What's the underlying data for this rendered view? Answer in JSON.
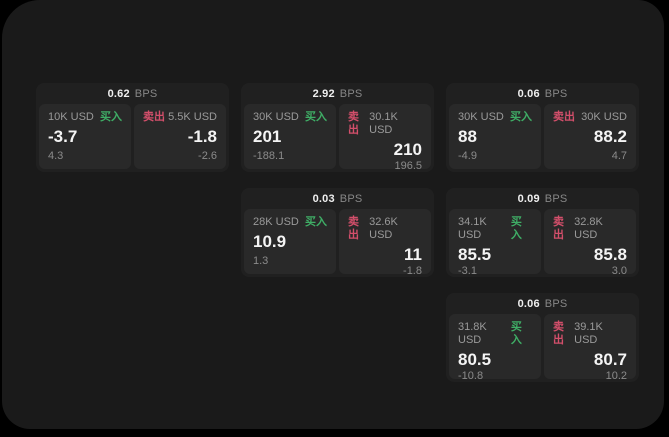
{
  "colors": {
    "background": "#000000",
    "panel": "#1a1a1a",
    "card": "#202020",
    "pane": "#292929",
    "buy": "#3fae66",
    "sell": "#d44f6b",
    "price_text": "#f4f4f4",
    "muted_text": "#9a9a9a"
  },
  "labels": {
    "bps": "BPS",
    "buy": "买入",
    "sell": "卖出"
  },
  "cards": [
    {
      "bps": "0.62",
      "buy": {
        "amount": "10K USD",
        "price": "-3.7",
        "delta": "4.3"
      },
      "sell": {
        "amount": "5.5K USD",
        "price": "-1.8",
        "delta": "-2.6"
      }
    },
    {
      "bps": "2.92",
      "buy": {
        "amount": "30K USD",
        "price": "201",
        "delta": "-188.1"
      },
      "sell": {
        "amount": "30.1K USD",
        "price": "210",
        "delta": "196.5"
      }
    },
    {
      "bps": "0.06",
      "buy": {
        "amount": "30K USD",
        "price": "88",
        "delta": "-4.9"
      },
      "sell": {
        "amount": "30K USD",
        "price": "88.2",
        "delta": "4.7"
      }
    },
    {
      "bps": "0.03",
      "buy": {
        "amount": "28K USD",
        "price": "10.9",
        "delta": "1.3"
      },
      "sell": {
        "amount": "32.6K USD",
        "price": "11",
        "delta": "-1.8"
      }
    },
    {
      "bps": "0.09",
      "buy": {
        "amount": "34.1K USD",
        "price": "85.5",
        "delta": "-3.1"
      },
      "sell": {
        "amount": "32.8K USD",
        "price": "85.8",
        "delta": "3.0"
      }
    },
    {
      "bps": "0.06",
      "buy": {
        "amount": "31.8K USD",
        "price": "80.5",
        "delta": "-10.8"
      },
      "sell": {
        "amount": "39.1K USD",
        "price": "80.7",
        "delta": "10.2"
      }
    }
  ]
}
